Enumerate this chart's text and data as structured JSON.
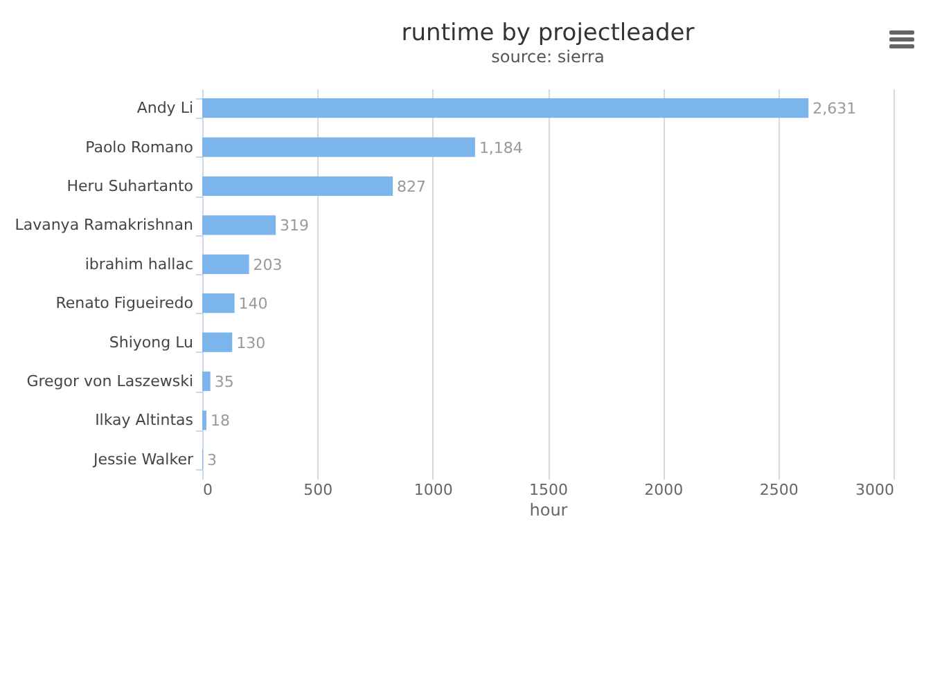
{
  "chart_data": {
    "type": "bar",
    "orientation": "horizontal",
    "title": "runtime by projectleader",
    "subtitle": "source: sierra",
    "xlabel": "hour",
    "categories": [
      "Andy Li",
      "Paolo Romano",
      "Heru Suhartanto",
      "Lavanya Ramakrishnan",
      "ibrahim hallac",
      "Renato Figueiredo",
      "Shiyong Lu",
      "Gregor von Laszewski",
      "Ilkay Altintas",
      "Jessie Walker"
    ],
    "values": [
      2631,
      1184,
      827,
      319,
      203,
      140,
      130,
      35,
      18,
      3
    ],
    "value_labels": [
      "2,631",
      "1,184",
      "827",
      "319",
      "203",
      "140",
      "130",
      "35",
      "18",
      "3"
    ],
    "color": "#7cb5ec",
    "xlim": [
      0,
      3000
    ],
    "xticks": [
      0,
      500,
      1000,
      1500,
      2000,
      2500,
      3000
    ],
    "grid": "x"
  }
}
